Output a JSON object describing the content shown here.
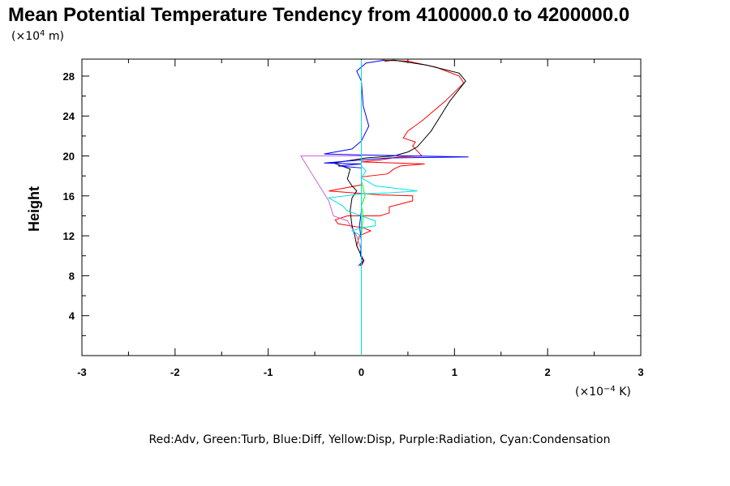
{
  "chart_data": {
    "type": "line",
    "title": "Mean Potential Temperature Tendency from 4100000.0 to 4200000.0",
    "y_unit": {
      "prefix": "(×10",
      "exp": "4",
      "suffix": " m)"
    },
    "x_unit": {
      "prefix": "(×10",
      "exp": "−4",
      "suffix": " K)"
    },
    "ylabel": "Height",
    "xlabel": "",
    "xlim": [
      -3,
      3
    ],
    "ylim": [
      0,
      29.7
    ],
    "x_ticks": [
      "-3",
      "-2",
      "-1",
      "0",
      "1",
      "2",
      "3"
    ],
    "y_ticks": [
      "4",
      "8",
      "12",
      "16",
      "20",
      "24",
      "28"
    ],
    "legend_text": "Red:Adv, Green:Turb, Blue:Diff, Yellow:Disp, Purple:Radiation, Cyan:Condensation",
    "series": [
      {
        "color": "#ff0000",
        "points": [
          [
            0.0,
            9.0
          ],
          [
            0.03,
            9.5
          ],
          [
            0.0,
            10.0
          ],
          [
            -0.05,
            11.0
          ],
          [
            -0.02,
            12.0
          ],
          [
            0.1,
            12.5
          ],
          [
            0.02,
            12.8
          ],
          [
            -0.25,
            13.2
          ],
          [
            -0.28,
            13.6
          ],
          [
            -0.15,
            14.0
          ],
          [
            0.2,
            14.0
          ],
          [
            0.3,
            14.3
          ],
          [
            0.3,
            14.9
          ],
          [
            0.55,
            15.5
          ],
          [
            0.55,
            16.0
          ],
          [
            0.2,
            16.1
          ],
          [
            -0.35,
            16.5
          ],
          [
            0.0,
            17.1
          ],
          [
            0.0,
            17.9
          ],
          [
            0.28,
            18.2
          ],
          [
            0.35,
            18.7
          ],
          [
            0.42,
            19.0
          ],
          [
            0.68,
            19.2
          ],
          [
            0.0,
            19.4
          ],
          [
            0.2,
            19.6
          ],
          [
            0.4,
            19.9
          ],
          [
            0.65,
            20.0
          ],
          [
            0.55,
            21.0
          ],
          [
            0.58,
            21.4
          ],
          [
            0.45,
            21.8
          ],
          [
            0.5,
            22.5
          ],
          [
            0.65,
            23.5
          ],
          [
            0.9,
            25.5
          ],
          [
            1.1,
            27.3
          ],
          [
            1.05,
            28.0
          ],
          [
            0.8,
            28.9
          ],
          [
            0.5,
            29.5
          ],
          [
            0.22,
            29.6
          ]
        ]
      },
      {
        "color": "#000000",
        "points": [
          [
            -0.01,
            9.0
          ],
          [
            0.02,
            9.5
          ],
          [
            0.0,
            10.0
          ],
          [
            -0.05,
            11.0
          ],
          [
            -0.07,
            12.0
          ],
          [
            -0.1,
            13.0
          ],
          [
            -0.12,
            14.5
          ],
          [
            -0.1,
            15.8
          ],
          [
            -0.05,
            16.5
          ],
          [
            -0.1,
            17.0
          ],
          [
            -0.15,
            17.7
          ],
          [
            -0.12,
            18.7
          ],
          [
            -0.3,
            19.3
          ],
          [
            0.05,
            19.8
          ],
          [
            0.35,
            20.0
          ],
          [
            0.5,
            20.4
          ],
          [
            0.6,
            20.9
          ],
          [
            0.75,
            22.5
          ],
          [
            0.95,
            25.5
          ],
          [
            1.12,
            27.5
          ],
          [
            1.05,
            28.3
          ],
          [
            0.7,
            29.1
          ],
          [
            0.35,
            29.6
          ],
          [
            0.25,
            29.5
          ]
        ]
      },
      {
        "color": "#0000ff",
        "points": [
          [
            -0.03,
            9.0
          ],
          [
            0.02,
            9.5
          ],
          [
            -0.01,
            10.0
          ],
          [
            0.0,
            11.5
          ],
          [
            -0.02,
            13.0
          ],
          [
            0.0,
            14.5
          ],
          [
            0.0,
            16.0
          ],
          [
            0.0,
            17.5
          ],
          [
            0.0,
            18.8
          ],
          [
            -0.25,
            19.0
          ],
          [
            0.0,
            19.2
          ],
          [
            -0.4,
            19.3
          ],
          [
            0.0,
            19.6
          ],
          [
            0.3,
            19.8
          ],
          [
            1.15,
            19.9
          ],
          [
            0.0,
            20.1
          ],
          [
            -0.4,
            20.2
          ],
          [
            -0.1,
            20.7
          ],
          [
            0.0,
            21.5
          ],
          [
            0.08,
            23.0
          ],
          [
            0.02,
            25.0
          ],
          [
            0.0,
            27.5
          ],
          [
            -0.05,
            28.5
          ],
          [
            0.05,
            29.3
          ],
          [
            0.25,
            29.6
          ]
        ]
      },
      {
        "color": "#00ff00",
        "points": [
          [
            0.0,
            9.0
          ],
          [
            0.0,
            12.0
          ],
          [
            0.02,
            14.0
          ],
          [
            0.0,
            15.0
          ],
          [
            0.04,
            16.0
          ],
          [
            0.0,
            17.5
          ],
          [
            0.0,
            19.5
          ],
          [
            0.0,
            29.6
          ]
        ]
      },
      {
        "color": "#ffff00",
        "points": [
          [
            0.0,
            9.0
          ],
          [
            0.0,
            29.6
          ]
        ]
      },
      {
        "color": "#cc66cc",
        "points": [
          [
            0.0,
            9.0
          ],
          [
            0.0,
            10.5
          ],
          [
            -0.05,
            12.0
          ],
          [
            -0.15,
            13.5
          ],
          [
            -0.3,
            14.0
          ],
          [
            -0.35,
            15.5
          ],
          [
            -0.45,
            17.0
          ],
          [
            -0.55,
            18.5
          ],
          [
            -0.65,
            20.0
          ],
          [
            -0.2,
            20.0
          ],
          [
            0.0,
            20.0
          ],
          [
            0.0,
            29.6
          ]
        ]
      },
      {
        "color": "#00e0e0",
        "points": [
          [
            0.0,
            9.0
          ],
          [
            0.0,
            12.0
          ],
          [
            -0.1,
            12.5
          ],
          [
            0.0,
            12.8
          ],
          [
            0.15,
            13.0
          ],
          [
            0.15,
            13.5
          ],
          [
            0.0,
            14.0
          ],
          [
            -0.15,
            14.5
          ],
          [
            -0.2,
            15.0
          ],
          [
            -0.35,
            15.8
          ],
          [
            0.0,
            16.2
          ],
          [
            0.3,
            16.3
          ],
          [
            0.6,
            16.5
          ],
          [
            0.15,
            17.0
          ],
          [
            0.0,
            17.8
          ],
          [
            0.05,
            18.5
          ],
          [
            0.0,
            19.0
          ],
          [
            0.0,
            29.6
          ]
        ]
      },
      {
        "color": "#00e0e0",
        "points": [
          [
            0.0,
            0.0
          ],
          [
            0.0,
            29.6
          ]
        ]
      }
    ]
  }
}
